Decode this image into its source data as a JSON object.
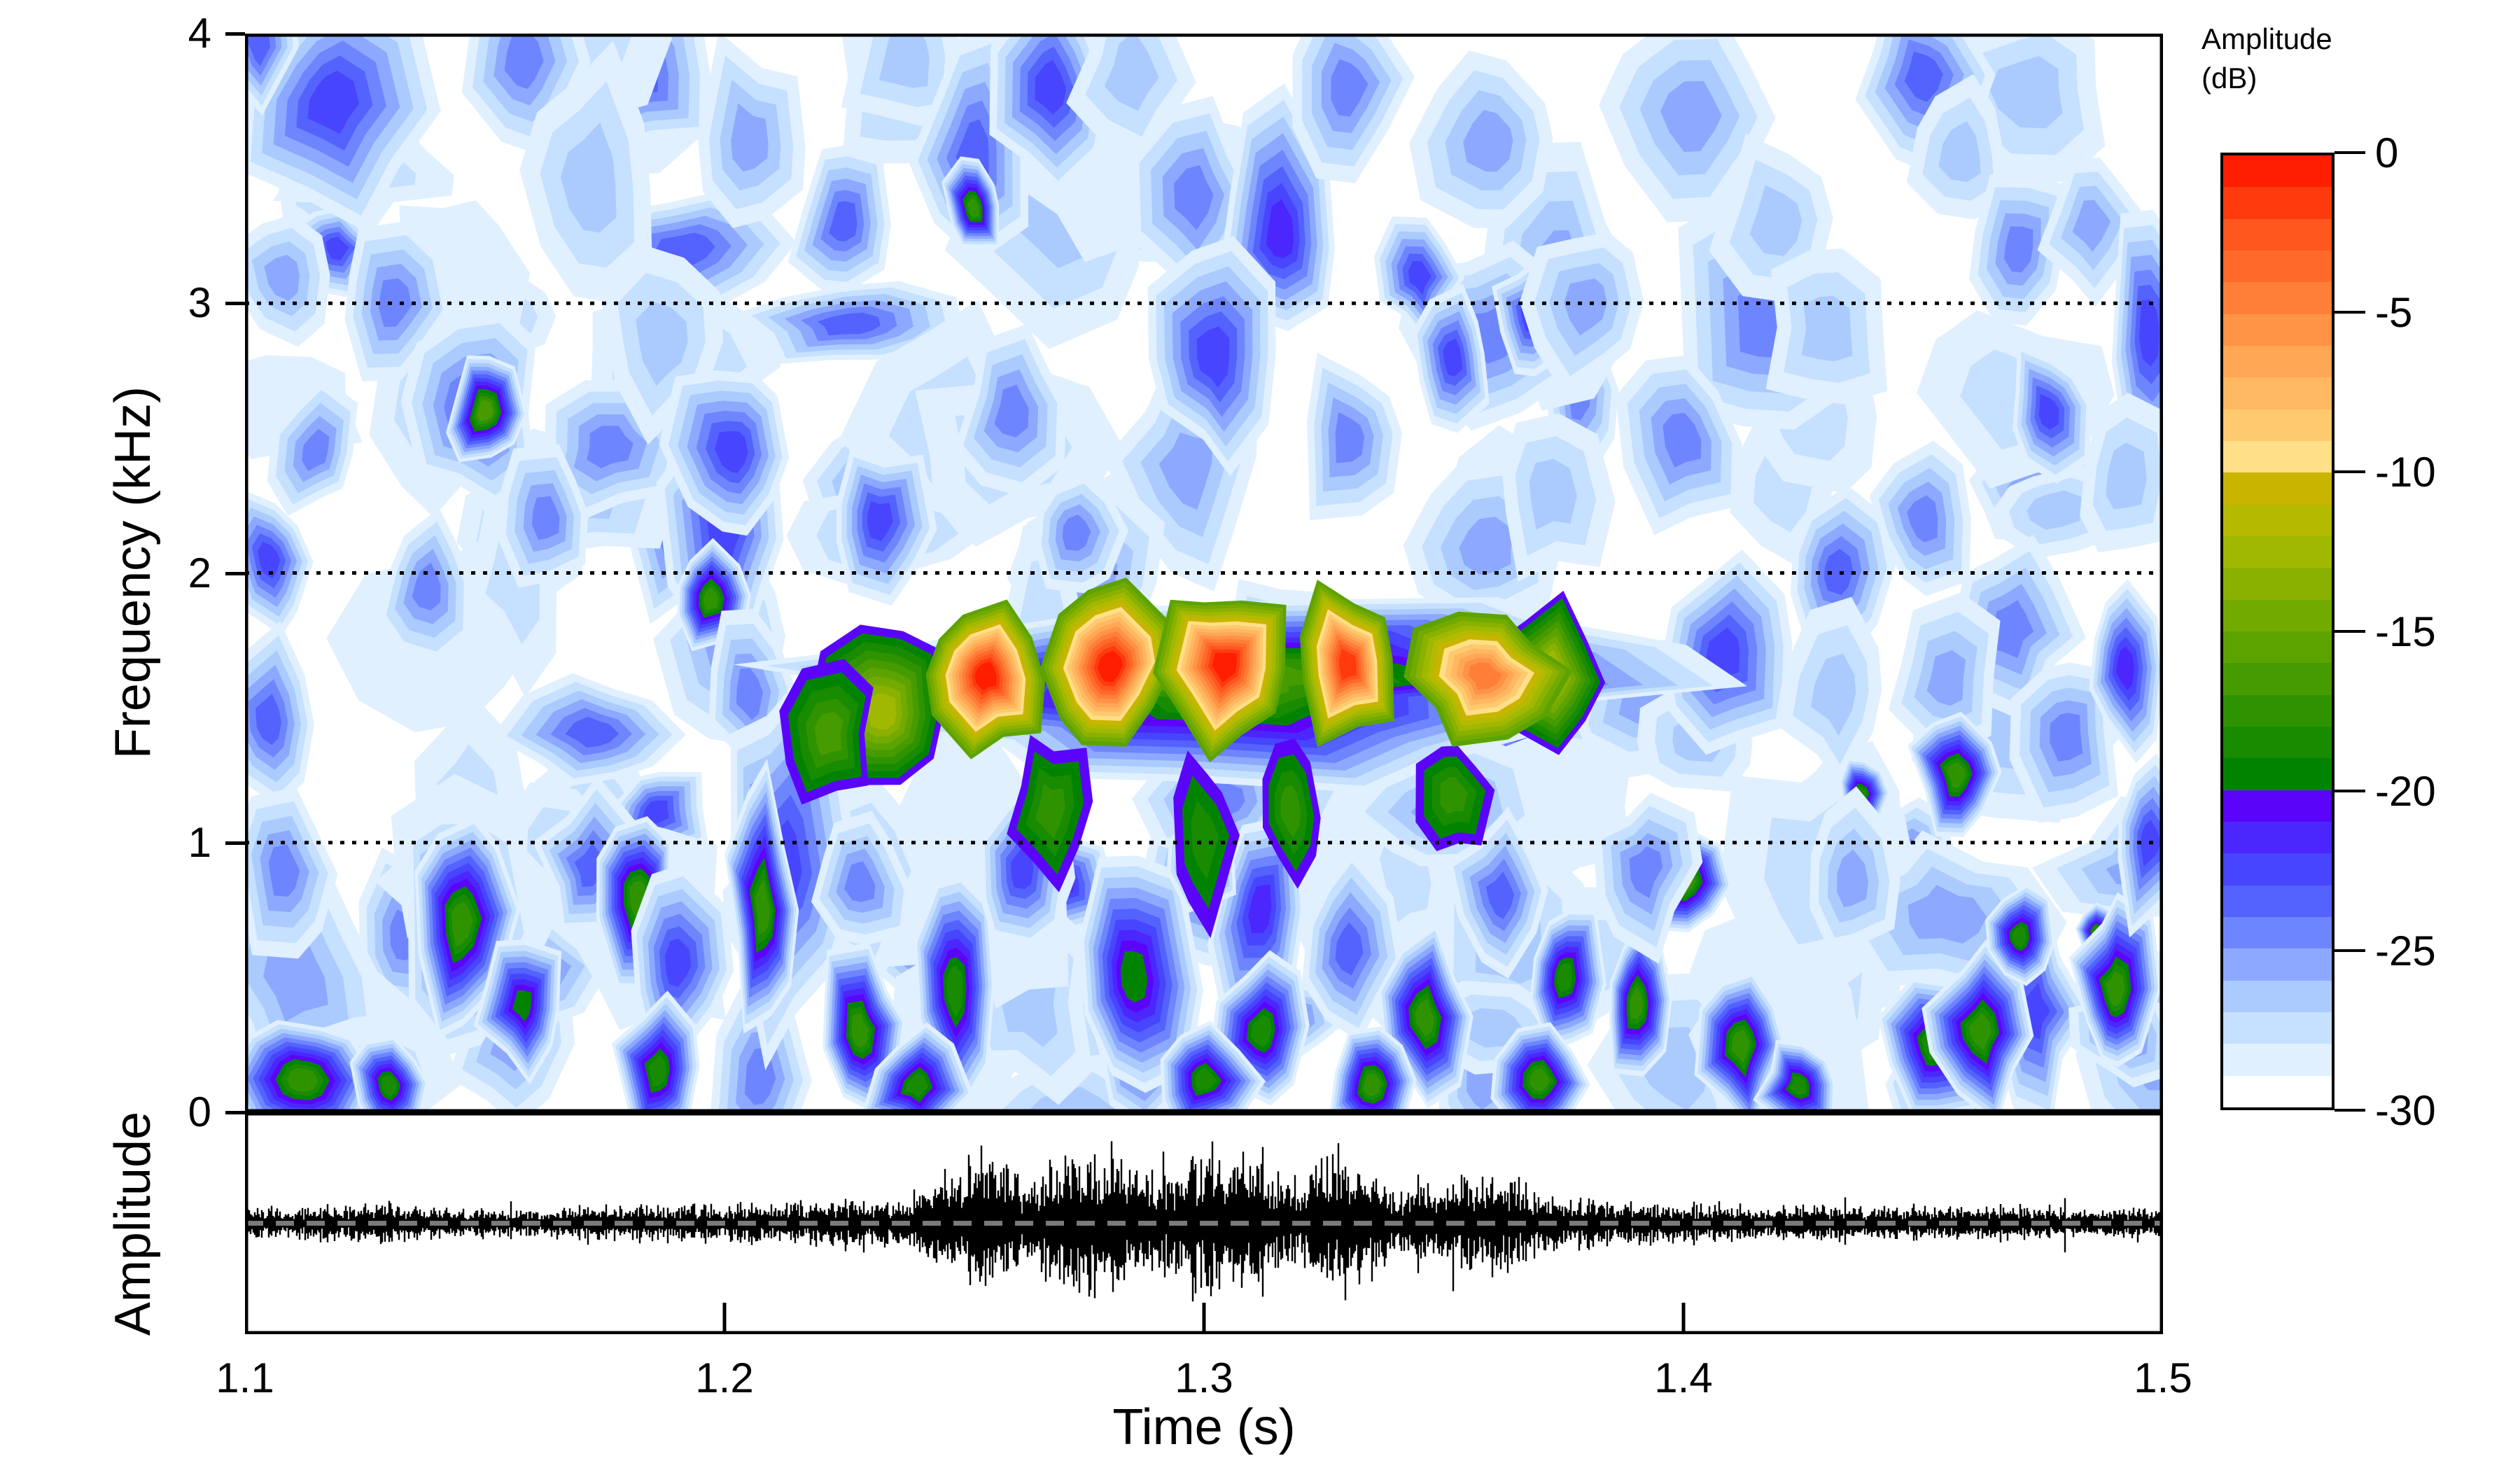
{
  "chart_data": {
    "type": "heatmap",
    "subtype": "spectrogram-filled-contour-with-oscillogram",
    "title": "",
    "x_axis": {
      "label": "Time (s)",
      "min": 1.1,
      "max": 1.5,
      "tick_values": [
        1.1,
        1.2,
        1.3,
        1.4,
        1.5
      ],
      "tick_labels": [
        "1.1",
        "1.2",
        "1.3",
        "1.4",
        "1.5"
      ]
    },
    "y_axis": {
      "label": "Frequency (kHz)",
      "min": 0,
      "max": 4,
      "tick_values": [
        0,
        1,
        2,
        3,
        4
      ],
      "tick_labels": [
        "0",
        "1",
        "2",
        "3",
        "4"
      ],
      "dotted_gridlines_khz": [
        1,
        2,
        3,
        4
      ]
    },
    "oscillogram_axis": {
      "label": "Amplitude",
      "zero_line": true
    },
    "colorbar": {
      "title": [
        "Amplitude",
        "(dB)"
      ],
      "min": -30,
      "max": 0,
      "tick_values": [
        0,
        -5,
        -10,
        -15,
        -20,
        -25,
        -30
      ],
      "tick_labels": [
        "0",
        "-5",
        "-10",
        "-15",
        "-20",
        "-25",
        "-30"
      ],
      "level_step_db": 1,
      "palette_strong_to_weak": [
        "#FF1E00",
        "#FF3B0E",
        "#FF571D",
        "#FF6A2B",
        "#FF7F39",
        "#FF9346",
        "#FFA754",
        "#FFB862",
        "#FFC96F",
        "#FFDF87",
        "#C9B500",
        "#B4BA00",
        "#A0B900",
        "#8AB100",
        "#73AA00",
        "#5CA300",
        "#459B00",
        "#2F9300",
        "#188B00",
        "#028300",
        "#5A05FA",
        "#4B27FE",
        "#4845FE",
        "#5462FE",
        "#6D86FF",
        "#8CA9FF",
        "#ABCBFF",
        "#C6E0FF",
        "#E0F0FF",
        "#FFFFFF"
      ]
    },
    "styles": {
      "background": "#FFFFFF",
      "frame_color": "#000000",
      "gridline_color": "#000000",
      "waveform_color": "#000000",
      "zero_line_color": "#7A7A7A"
    },
    "render_seed": 20240613,
    "hot_band": {
      "body": [
        1.3055,
        1.6,
        0.085,
        0.34,
        16
      ],
      "extras": [
        [
          1.233,
          1.48,
          0.013,
          0.32,
          12
        ],
        [
          1.222,
          1.4,
          0.009,
          0.25,
          16
        ],
        [
          1.372,
          1.62,
          0.012,
          0.28,
          11
        ],
        [
          1.3,
          1.02,
          0.006,
          0.3,
          18
        ],
        [
          1.318,
          1.12,
          0.006,
          0.25,
          17
        ],
        [
          1.268,
          1.12,
          0.008,
          0.28,
          17
        ],
        [
          1.352,
          1.18,
          0.007,
          0.22,
          17
        ]
      ],
      "hotspot_outer_level": 15,
      "hotspots_t_f_rt_rf_core": [
        [
          1.2545,
          1.62,
          0.013,
          0.27,
          0
        ],
        [
          1.2805,
          1.65,
          0.0135,
          0.29,
          0
        ],
        [
          1.3045,
          1.66,
          0.013,
          0.3,
          0
        ],
        [
          1.33,
          1.66,
          0.012,
          0.28,
          1
        ],
        [
          1.3585,
          1.62,
          0.015,
          0.25,
          4
        ]
      ]
    },
    "features_t_f_rt_rf_core": [
      [
        1.118,
        3.75,
        0.02,
        0.4,
        22
      ],
      [
        1.103,
        3.95,
        0.008,
        0.2,
        23
      ],
      [
        1.108,
        3.1,
        0.01,
        0.25,
        25
      ],
      [
        1.131,
        3.0,
        0.011,
        0.28,
        24
      ],
      [
        1.158,
        3.9,
        0.012,
        0.35,
        24
      ],
      [
        1.172,
        3.45,
        0.015,
        0.45,
        26
      ],
      [
        1.187,
        2.85,
        0.013,
        0.35,
        26
      ],
      [
        1.205,
        3.6,
        0.013,
        0.35,
        25
      ],
      [
        1.225,
        3.3,
        0.01,
        0.3,
        23
      ],
      [
        1.238,
        3.9,
        0.012,
        0.3,
        26
      ],
      [
        1.252,
        3.55,
        0.013,
        0.45,
        23
      ],
      [
        1.268,
        3.8,
        0.011,
        0.4,
        22
      ],
      [
        1.285,
        3.85,
        0.012,
        0.3,
        26
      ],
      [
        1.298,
        3.4,
        0.012,
        0.35,
        24
      ],
      [
        1.316,
        3.25,
        0.011,
        0.45,
        21
      ],
      [
        1.33,
        3.8,
        0.012,
        0.35,
        24
      ],
      [
        1.345,
        3.1,
        0.008,
        0.22,
        22
      ],
      [
        1.36,
        3.6,
        0.016,
        0.35,
        25
      ],
      [
        1.368,
        2.95,
        0.007,
        0.22,
        22
      ],
      [
        1.38,
        3.0,
        0.013,
        0.3,
        25
      ],
      [
        1.402,
        3.7,
        0.018,
        0.4,
        25
      ],
      [
        1.42,
        3.3,
        0.012,
        0.3,
        26
      ],
      [
        1.45,
        3.85,
        0.012,
        0.3,
        23
      ],
      [
        1.458,
        3.55,
        0.01,
        0.25,
        26
      ],
      [
        1.47,
        3.2,
        0.012,
        0.3,
        24
      ],
      [
        1.485,
        3.3,
        0.01,
        0.28,
        25
      ],
      [
        1.497,
        2.9,
        0.009,
        0.45,
        22
      ],
      [
        1.252,
        3.35,
        0.006,
        0.18,
        17
      ],
      [
        1.105,
        2.05,
        0.008,
        0.25,
        22
      ],
      [
        1.115,
        2.45,
        0.009,
        0.22,
        24
      ],
      [
        1.138,
        1.95,
        0.009,
        0.25,
        24
      ],
      [
        1.148,
        2.6,
        0.013,
        0.35,
        23
      ],
      [
        1.163,
        2.2,
        0.01,
        0.25,
        24
      ],
      [
        1.2,
        2.15,
        0.012,
        0.4,
        22
      ],
      [
        1.202,
        2.45,
        0.013,
        0.35,
        22
      ],
      [
        1.232,
        2.2,
        0.01,
        0.28,
        22
      ],
      [
        1.26,
        2.6,
        0.011,
        0.3,
        24
      ],
      [
        1.273,
        2.15,
        0.009,
        0.22,
        24
      ],
      [
        1.302,
        2.8,
        0.013,
        0.4,
        22
      ],
      [
        1.33,
        2.5,
        0.011,
        0.3,
        24
      ],
      [
        1.352,
        2.8,
        0.008,
        0.22,
        22
      ],
      [
        1.372,
        2.3,
        0.012,
        0.3,
        26
      ],
      [
        1.4,
        2.5,
        0.012,
        0.32,
        24
      ],
      [
        1.432,
        2.0,
        0.011,
        0.28,
        23
      ],
      [
        1.43,
        2.9,
        0.013,
        0.3,
        26
      ],
      [
        1.45,
        2.2,
        0.011,
        0.28,
        24
      ],
      [
        1.476,
        2.6,
        0.009,
        0.24,
        22
      ],
      [
        1.492,
        2.35,
        0.01,
        0.3,
        26
      ],
      [
        1.15,
        2.6,
        0.008,
        0.2,
        16
      ],
      [
        1.197,
        1.9,
        0.007,
        0.18,
        17
      ],
      [
        1.205,
        1.55,
        0.008,
        0.3,
        24
      ],
      [
        1.408,
        1.7,
        0.014,
        0.35,
        22
      ],
      [
        1.432,
        1.55,
        0.011,
        0.3,
        26
      ],
      [
        1.455,
        1.6,
        0.012,
        0.3,
        25
      ],
      [
        1.48,
        1.4,
        0.011,
        0.3,
        24
      ],
      [
        1.492,
        1.65,
        0.008,
        0.3,
        21
      ],
      [
        1.457,
        1.25,
        0.009,
        0.22,
        17
      ],
      [
        1.4,
        0.86,
        0.008,
        0.18,
        16
      ],
      [
        1.437,
        1.18,
        0.005,
        0.12,
        18
      ],
      [
        1.105,
        1.45,
        0.01,
        0.35,
        23
      ],
      [
        1.108,
        0.9,
        0.011,
        0.3,
        24
      ],
      [
        1.145,
        0.7,
        0.014,
        0.5,
        22
      ],
      [
        1.145,
        0.7,
        0.01,
        0.4,
        17
      ],
      [
        1.158,
        0.4,
        0.009,
        0.25,
        19
      ],
      [
        1.172,
        0.9,
        0.01,
        0.28,
        23
      ],
      [
        1.182,
        0.8,
        0.008,
        0.3,
        17
      ],
      [
        1.19,
        0.55,
        0.01,
        0.3,
        22
      ],
      [
        1.212,
        0.9,
        0.013,
        0.7,
        22
      ],
      [
        1.208,
        0.75,
        0.007,
        0.5,
        17
      ],
      [
        1.228,
        0.85,
        0.01,
        0.28,
        24
      ],
      [
        1.228,
        0.3,
        0.009,
        0.3,
        17
      ],
      [
        1.248,
        0.45,
        0.008,
        0.4,
        18
      ],
      [
        1.262,
        0.9,
        0.01,
        0.3,
        22
      ],
      [
        1.285,
        0.5,
        0.012,
        0.45,
        19
      ],
      [
        1.3,
        0.95,
        0.007,
        0.2,
        21
      ],
      [
        1.312,
        0.3,
        0.009,
        0.28,
        18
      ],
      [
        1.33,
        0.6,
        0.01,
        0.3,
        23
      ],
      [
        1.346,
        0.35,
        0.009,
        0.3,
        17
      ],
      [
        1.362,
        0.8,
        0.01,
        0.28,
        23
      ],
      [
        1.375,
        0.5,
        0.008,
        0.3,
        18
      ],
      [
        1.39,
        0.4,
        0.007,
        0.25,
        17
      ],
      [
        1.392,
        0.9,
        0.01,
        0.28,
        24
      ],
      [
        1.412,
        0.25,
        0.009,
        0.28,
        17
      ],
      [
        1.435,
        0.85,
        0.011,
        0.3,
        25
      ],
      [
        1.452,
        0.25,
        0.01,
        0.28,
        18
      ],
      [
        1.462,
        0.3,
        0.01,
        0.3,
        17
      ],
      [
        1.47,
        0.65,
        0.008,
        0.2,
        18
      ],
      [
        1.486,
        0.67,
        0.004,
        0.1,
        18
      ],
      [
        1.49,
        0.45,
        0.008,
        0.35,
        17
      ],
      [
        1.497,
        1.0,
        0.008,
        0.3,
        22
      ],
      [
        1.112,
        0.12,
        0.013,
        0.22,
        17
      ],
      [
        1.13,
        0.1,
        0.008,
        0.18,
        18
      ],
      [
        1.186,
        0.15,
        0.008,
        0.25,
        18
      ],
      [
        1.24,
        0.1,
        0.01,
        0.2,
        18
      ],
      [
        1.3,
        0.12,
        0.012,
        0.22,
        18
      ],
      [
        1.335,
        0.1,
        0.008,
        0.18,
        17
      ],
      [
        1.37,
        0.12,
        0.009,
        0.2,
        17
      ],
      [
        1.424,
        0.1,
        0.008,
        0.18,
        18
      ]
    ],
    "filler_texture": {
      "count": 120,
      "core_choices": [
        28,
        27,
        26,
        25,
        24,
        23,
        22,
        21
      ],
      "core_weights": [
        0.18,
        0.2,
        0.2,
        0.15,
        0.11,
        0.08,
        0.05,
        0.03
      ],
      "low_freq_bias": 0.62
    },
    "waveform_envelope_t_amp": [
      [
        1.1,
        0.17
      ],
      [
        1.115,
        0.21
      ],
      [
        1.13,
        0.23
      ],
      [
        1.145,
        0.19
      ],
      [
        1.16,
        0.18
      ],
      [
        1.175,
        0.22
      ],
      [
        1.19,
        0.21
      ],
      [
        1.205,
        0.24
      ],
      [
        1.218,
        0.26
      ],
      [
        1.228,
        0.33
      ],
      [
        1.235,
        0.26
      ],
      [
        1.242,
        0.4
      ],
      [
        1.249,
        0.72
      ],
      [
        1.254,
        0.88
      ],
      [
        1.259,
        0.75
      ],
      [
        1.263,
        0.5
      ],
      [
        1.267,
        0.72
      ],
      [
        1.274,
        0.95
      ],
      [
        1.281,
        0.92
      ],
      [
        1.287,
        0.62
      ],
      [
        1.292,
        0.55
      ],
      [
        1.297,
        0.88
      ],
      [
        1.303,
        1.0
      ],
      [
        1.309,
        0.9
      ],
      [
        1.314,
        0.6
      ],
      [
        1.319,
        0.52
      ],
      [
        1.324,
        0.74
      ],
      [
        1.33,
        0.82
      ],
      [
        1.336,
        0.66
      ],
      [
        1.341,
        0.42
      ],
      [
        1.347,
        0.48
      ],
      [
        1.353,
        0.6
      ],
      [
        1.36,
        0.62
      ],
      [
        1.367,
        0.5
      ],
      [
        1.374,
        0.33
      ],
      [
        1.385,
        0.28
      ],
      [
        1.4,
        0.24
      ],
      [
        1.415,
        0.22
      ],
      [
        1.43,
        0.24
      ],
      [
        1.445,
        0.19
      ],
      [
        1.46,
        0.21
      ],
      [
        1.475,
        0.22
      ],
      [
        1.49,
        0.19
      ],
      [
        1.5,
        0.18
      ]
    ]
  }
}
